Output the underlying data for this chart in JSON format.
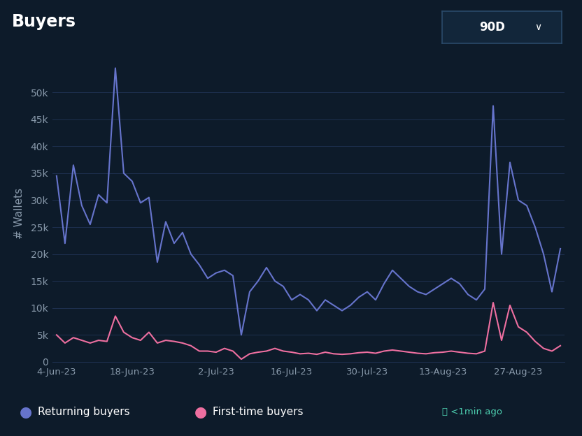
{
  "title": "Buyers",
  "ylabel": "# Wallets",
  "background_color": "#0d1b2a",
  "plot_bg_color": "#0d1b2a",
  "grid_color": "#1e3050",
  "title_color": "#ffffff",
  "axis_color": "#8899aa",
  "button_label": "90D",
  "x_labels": [
    "4-Jun-23",
    "18-Jun-23",
    "2-Jul-23",
    "16-Jul-23",
    "30-Jul-23",
    "13-Aug-23",
    "27-Aug-23"
  ],
  "yticks": [
    0,
    5000,
    10000,
    15000,
    20000,
    25000,
    30000,
    35000,
    40000,
    45000,
    50000
  ],
  "ytick_labels": [
    "0",
    "5k",
    "10k",
    "15k",
    "20k",
    "25k",
    "30k",
    "35k",
    "40k",
    "45k",
    "50k"
  ],
  "ylim": [
    0,
    55000
  ],
  "returning_color": "#6674cc",
  "firsttime_color": "#ee6fa0",
  "legend_returning": "Returning buyers",
  "legend_firsttime": "First-time buyers",
  "returning_buyers": [
    34500,
    22000,
    36500,
    29000,
    25500,
    31000,
    29500,
    54500,
    35000,
    33500,
    29500,
    30500,
    18500,
    26000,
    22000,
    24000,
    20000,
    18000,
    15500,
    16500,
    17000,
    16000,
    5000,
    13000,
    15000,
    17500,
    15000,
    14000,
    11500,
    12500,
    11500,
    9500,
    11500,
    10500,
    9500,
    10500,
    12000,
    13000,
    11500,
    14500,
    17000,
    15500,
    14000,
    13000,
    12500,
    13500,
    14500,
    15500,
    14500,
    12500,
    11500,
    13500,
    47500,
    20000,
    37000,
    30000,
    29000,
    25000,
    20000,
    13000,
    21000
  ],
  "firsttime_buyers": [
    5000,
    3500,
    4500,
    4000,
    3500,
    4000,
    3800,
    8500,
    5500,
    4500,
    4000,
    5500,
    3500,
    4000,
    3800,
    3500,
    3000,
    2000,
    2000,
    1800,
    2500,
    2000,
    500,
    1500,
    1800,
    2000,
    2500,
    2000,
    1800,
    1500,
    1600,
    1400,
    1800,
    1500,
    1400,
    1500,
    1700,
    1800,
    1600,
    2000,
    2200,
    2000,
    1800,
    1600,
    1500,
    1700,
    1800,
    2000,
    1800,
    1600,
    1500,
    2000,
    11000,
    4000,
    10500,
    6500,
    5500,
    3800,
    2500,
    2000,
    3000
  ]
}
